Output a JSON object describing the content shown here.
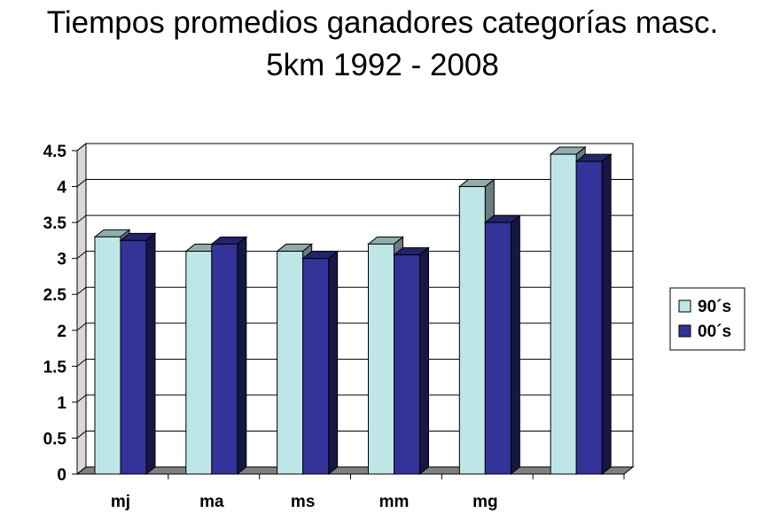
{
  "chart_data": {
    "type": "bar",
    "title_lines": [
      "Tiempos promedios ganadores categorías masc.",
      "5km 1992 - 2008"
    ],
    "categories": [
      "mj",
      "ma",
      "ms",
      "mm",
      "mg",
      ""
    ],
    "series": [
      {
        "name": "90´s",
        "color": "#bfe6e6",
        "values": [
          3.3,
          3.1,
          3.1,
          3.2,
          4.0,
          4.45
        ]
      },
      {
        "name": "00´s",
        "color": "#333399",
        "values": [
          3.25,
          3.2,
          3.0,
          3.05,
          3.5,
          4.35
        ]
      }
    ],
    "ylim": [
      0,
      4.5
    ],
    "yticks": [
      "0",
      "0.5",
      "1",
      "1.5",
      "2",
      "2.5",
      "3",
      "3.5",
      "4",
      "4.5"
    ],
    "grid": true,
    "legend_position": "right"
  }
}
